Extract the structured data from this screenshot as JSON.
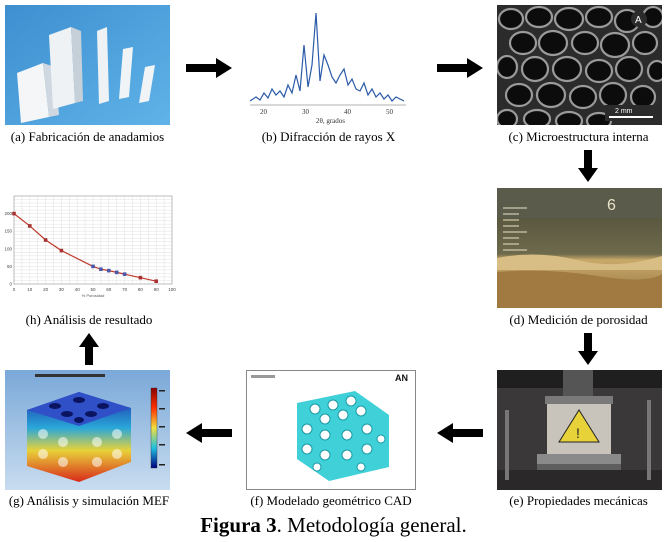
{
  "panels": {
    "a": {
      "caption": "(a) Fabricación de anadamios"
    },
    "b": {
      "caption": "(b) Difracción de rayos X",
      "xlabel": "2θ, grados",
      "ticks": [
        "20",
        "30",
        "40",
        "50"
      ]
    },
    "c": {
      "caption": "(c) Microestructura interna",
      "letter": "A",
      "scale": "2 mm"
    },
    "d": {
      "caption": "(d) Medición de porosidad",
      "ruler_number": "6"
    },
    "e": {
      "caption": "(e) Propiedades mecánicas"
    },
    "f": {
      "caption": "(f) Modelado geométrico CAD",
      "logo": "AN"
    },
    "g": {
      "caption": "(g) Análisis y simulación MEF"
    },
    "h": {
      "caption": "(h) Análisis de resultado"
    }
  },
  "figure": {
    "label": "Figura 3",
    "text": ". Metodología general."
  },
  "chart_data": {
    "type": "scatter",
    "x": [
      0,
      10,
      20,
      30,
      50,
      55,
      60,
      65,
      70,
      80,
      90
    ],
    "y": [
      200,
      165,
      125,
      95,
      50,
      42,
      38,
      33,
      28,
      18,
      8
    ],
    "xlim": [
      0,
      100
    ],
    "ylim": [
      0,
      250
    ],
    "xticks": [
      "0",
      "10",
      "20",
      "30",
      "40",
      "50",
      "60",
      "70",
      "80",
      "90",
      "100"
    ],
    "yticks": [
      "0",
      "50",
      "100",
      "150",
      "200"
    ],
    "xlabel": "% Porosidad",
    "grid": true
  }
}
